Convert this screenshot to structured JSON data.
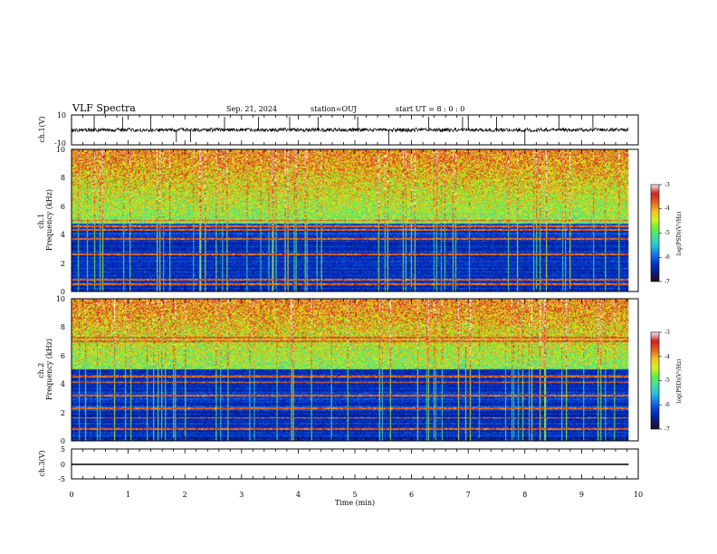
{
  "header": {
    "title": "VLF Spectra",
    "date": "Sep. 21, 2024",
    "station": "station=OUJ",
    "start_ut": "start  UT =  8 : 0  : 0"
  },
  "colors": {
    "frame": "#000000",
    "background": "#ffffff",
    "colormap": [
      "#2a0a1f",
      "#0c1a7a",
      "#0033cc",
      "#1a6ee6",
      "#20c0e0",
      "#40e0a0",
      "#60f040",
      "#d8f020",
      "#f0c020",
      "#e06020",
      "#d02020",
      "#f0f0f0"
    ]
  },
  "chart_data": [
    {
      "type": "line",
      "name": "ch1-waveform",
      "ylabel": "ch.1(V)",
      "xlim": [
        0,
        10
      ],
      "ylim": [
        -10,
        10
      ],
      "yticks": [
        "10",
        "-10"
      ],
      "baseline": 0,
      "noise_amplitude": 2.5,
      "end_x": 9.83,
      "spikes_x": [
        0.4,
        0.9,
        1.4,
        1.85,
        2.1,
        2.7,
        3.3,
        3.85,
        4.35,
        5.05,
        5.6,
        6.3,
        6.9,
        7.0,
        7.5,
        8.0,
        8.6,
        9.2
      ]
    },
    {
      "type": "heatmap",
      "name": "ch1-spectrogram",
      "ylabel": "ch.1\nFrequency  (kHz)",
      "xlim": [
        0,
        9.83
      ],
      "ylim": [
        0,
        10
      ],
      "yticks": [
        "0",
        "2",
        "4",
        "6",
        "8",
        "10"
      ],
      "colorbar": {
        "label": "log(PSD)(V²/Hz)",
        "range": [
          -7,
          -3
        ],
        "ticks": [
          "-3",
          "-4",
          "-5",
          "-6",
          "-7"
        ]
      },
      "features": {
        "low_band_kHz": [
          0,
          4.8
        ],
        "high_band_kHz": [
          5,
          10
        ],
        "strong_lines_kHz": [
          0.5,
          0.8,
          2.6,
          3.7,
          4.3,
          4.6,
          5.0
        ]
      }
    },
    {
      "type": "heatmap",
      "name": "ch2-spectrogram",
      "ylabel": "ch.2\nFrequency  (kHz)",
      "xlim": [
        0,
        9.83
      ],
      "ylim": [
        0,
        10
      ],
      "yticks": [
        "0",
        "2",
        "4",
        "6",
        "8",
        "10"
      ],
      "colorbar": {
        "label": "log(PSD)(V²/Hz)",
        "range": [
          -7,
          -3
        ],
        "ticks": [
          "-3",
          "-4",
          "-5",
          "-6",
          "-7"
        ]
      },
      "features": {
        "low_band_kHz": [
          0,
          5
        ],
        "high_band_kHz": [
          5,
          10
        ],
        "strong_lines_kHz": [
          0.8,
          1.6,
          2.3,
          3.2,
          4.1,
          4.5,
          7.0,
          7.3
        ]
      }
    },
    {
      "type": "line",
      "name": "ch3-waveform",
      "ylabel": "ch.3(V)",
      "xlim": [
        0,
        10
      ],
      "ylim": [
        -5,
        5
      ],
      "yticks": [
        "5",
        "0",
        "-5"
      ],
      "baseline": 0,
      "end_x": 9.83
    }
  ],
  "xaxis": {
    "label": "Time  (min)",
    "ticks": [
      "0",
      "1",
      "2",
      "3",
      "4",
      "5",
      "6",
      "7",
      "8",
      "9",
      "10"
    ]
  }
}
